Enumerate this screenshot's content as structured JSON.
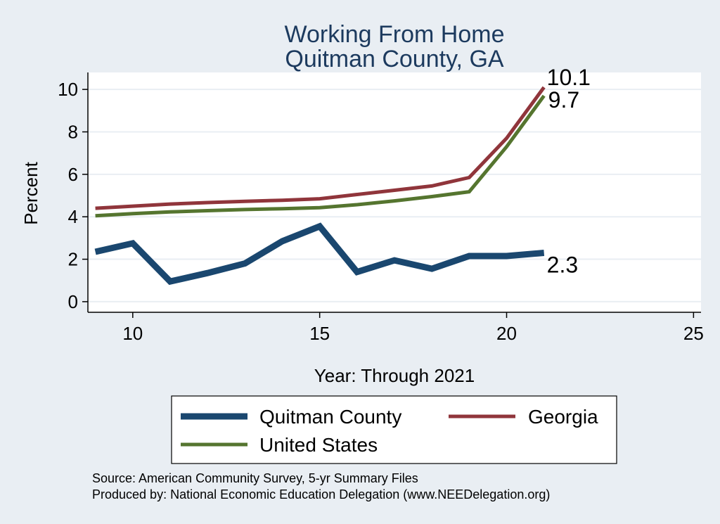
{
  "chart_data": {
    "type": "line",
    "title": [
      "Working From Home",
      "Quitman County, GA"
    ],
    "xlabel": "Year: Through 2021",
    "ylabel": "Percent",
    "xlim": [
      8.8,
      25.2
    ],
    "ylim": [
      -0.5,
      10.8
    ],
    "xticks": [
      10,
      15,
      20,
      25
    ],
    "yticks": [
      0,
      2,
      4,
      6,
      8,
      10
    ],
    "x": [
      9,
      10,
      11,
      12,
      13,
      14,
      15,
      16,
      17,
      18,
      19,
      20,
      21
    ],
    "series": [
      {
        "name": "Quitman County",
        "color": "#1a476f",
        "values": [
          2.35,
          2.75,
          0.95,
          1.35,
          1.8,
          2.85,
          3.55,
          1.4,
          1.95,
          1.55,
          2.15,
          2.15,
          2.3
        ],
        "end_label": "2.3"
      },
      {
        "name": "Georgia",
        "color": "#90353b",
        "values": [
          4.4,
          4.5,
          4.6,
          4.67,
          4.73,
          4.78,
          4.85,
          5.05,
          5.25,
          5.45,
          5.85,
          7.7,
          10.1
        ],
        "end_label": "10.1"
      },
      {
        "name": "United States",
        "color": "#55752f",
        "values": [
          4.05,
          4.15,
          4.23,
          4.29,
          4.34,
          4.38,
          4.43,
          4.57,
          4.75,
          4.95,
          5.18,
          7.3,
          9.7
        ],
        "end_label": "9.7"
      }
    ],
    "legend": {
      "position": "bottom",
      "order": [
        "Quitman County",
        "Georgia",
        "United States"
      ]
    },
    "notes": [
      "Source: American Community Survey, 5-yr Summary Files",
      "Produced by: National Economic Education Delegation (www.NEEDelegation.org)"
    ]
  }
}
